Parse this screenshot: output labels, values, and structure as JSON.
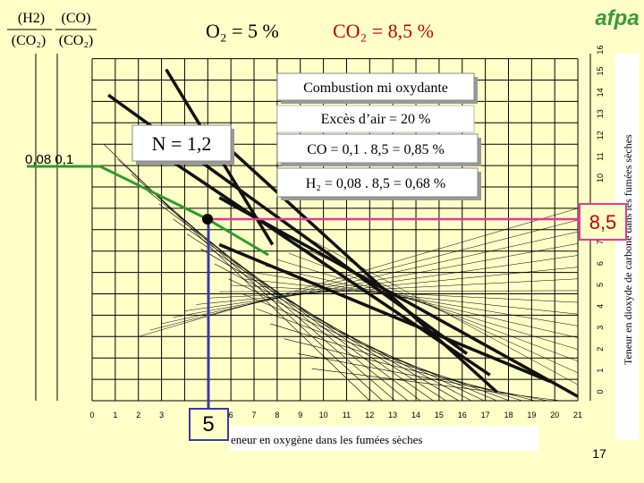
{
  "header": {
    "h2": "(H2)",
    "co": "(CO)",
    "co2_left": "(CO₂)",
    "co2_right": "(CO₂)",
    "o2": "O₂ = 5 %",
    "co2": "CO₂ = 8,5 %",
    "logo": "afpa"
  },
  "boxes": {
    "combustion": "Combustion mi oxydante",
    "excess_air": "Excès d’air  = 20 %",
    "n": "N = 1,2",
    "co_calc": "CO = 0,1 . 8,5 = 0,85 %",
    "h2_calc": "H₂ = 0,08 . 8,5 = 0,68 %"
  },
  "left_reading": "0,08  0,1",
  "co2_reading": "8,5",
  "o2_reading": "5",
  "x_axis": {
    "title": "eneur en oxygène dans les fumées sèches",
    "ticks": [
      "0",
      "1",
      "2",
      "3",
      "6",
      "7",
      "8",
      "9",
      "10",
      "11",
      "12",
      "13",
      "14",
      "15",
      "16",
      "17",
      "18",
      "19",
      "20",
      "21"
    ]
  },
  "y_axis": {
    "title": "Teneur en dioxyde de carbone dans les fumées sèches",
    "ticks": [
      "0",
      "1",
      "2",
      "3",
      "4",
      "5",
      "6",
      "7",
      "10",
      "11",
      "12",
      "13",
      "14",
      "15",
      "16"
    ]
  },
  "page_number": "17"
}
